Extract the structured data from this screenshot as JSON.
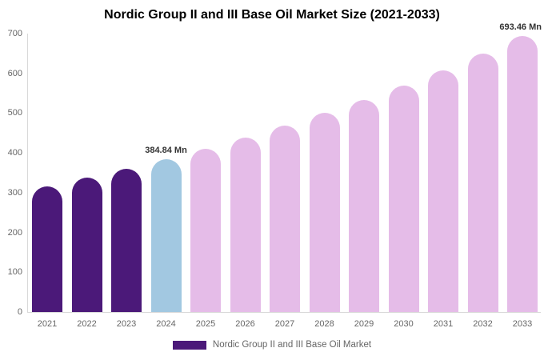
{
  "title": "Nordic Group II and III Base Oil Market Size (2021-2033)",
  "legend": {
    "label": "Nordic Group II and III Base Oil Market",
    "swatch_color": "#4B1979"
  },
  "chart_data": {
    "type": "bar",
    "title": "Nordic Group II and III Base Oil Market Size (2021-2033)",
    "xlabel": "",
    "ylabel": "",
    "unit": "Mn",
    "categories": [
      "2021",
      "2022",
      "2023",
      "2024",
      "2025",
      "2026",
      "2027",
      "2028",
      "2029",
      "2030",
      "2031",
      "2032",
      "2033"
    ],
    "values": [
      316.25,
      337.64,
      360.47,
      384.84,
      410.86,
      438.64,
      468.3,
      499.97,
      533.78,
      569.87,
      608.41,
      649.55,
      693.46
    ],
    "ylim": [
      0,
      700
    ],
    "yticks": [
      0,
      100,
      200,
      300,
      400,
      500,
      600,
      700
    ],
    "grid": false,
    "legend_position": "bottom",
    "annotations": [
      {
        "category": "2024",
        "text": "384.84 Mn"
      },
      {
        "category": "2033",
        "text": "693.46 Mn"
      }
    ],
    "colors": {
      "historical": "#4B1979",
      "current": "#A2C8E1",
      "forecast": "#E5BCE8"
    },
    "bar_roles": [
      "historical",
      "historical",
      "historical",
      "current",
      "forecast",
      "forecast",
      "forecast",
      "forecast",
      "forecast",
      "forecast",
      "forecast",
      "forecast",
      "forecast"
    ],
    "axis_color": "#d9d9d9",
    "tick_text_color": "#666666",
    "annotation_text_color": "#333333"
  }
}
